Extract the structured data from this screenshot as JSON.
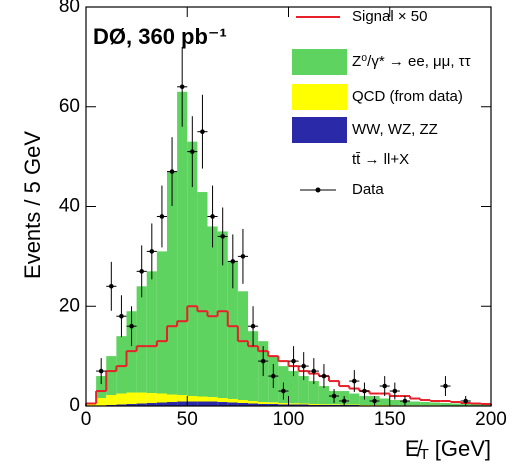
{
  "chart_data": {
    "type": "stacked_histogram",
    "title": "DØ, 360 pb⁻¹",
    "y_label": "Events / 5 GeV",
    "x_label": {
      "symbol": "E̸",
      "sub": "T",
      "unit": "[GeV]"
    },
    "xlim": [
      0,
      200
    ],
    "xticks": [
      0,
      50,
      100,
      150,
      200
    ],
    "ylim": [
      0,
      80
    ],
    "yticks": [
      0,
      20,
      40,
      60,
      80
    ],
    "bins": [
      0,
      5,
      10,
      15,
      20,
      25,
      30,
      35,
      40,
      45,
      50,
      55,
      60,
      65,
      70,
      75,
      80,
      85,
      90,
      95,
      100,
      105,
      110,
      115,
      120,
      125,
      130,
      135,
      140,
      145,
      150,
      155,
      160,
      165,
      170,
      175,
      180,
      185,
      190,
      195,
      200
    ],
    "series": [
      {
        "name": "WW, WZ, ZZ",
        "color": "#2a2aa8",
        "values": [
          0,
          0.1,
          0.2,
          0.3,
          0.4,
          0.5,
          0.6,
          0.7,
          0.8,
          0.9,
          0.9,
          0.9,
          0.9,
          0.8,
          0.7,
          0.6,
          0.5,
          0.4,
          0.4,
          0.3,
          0.3,
          0.3,
          0.2,
          0.2,
          0.2,
          0.2,
          0.2,
          0.1,
          0.1,
          0.1,
          0.1,
          0.1,
          0.1,
          0.1,
          0.1,
          0.1,
          0.1,
          0.1,
          0.1,
          0.1
        ]
      },
      {
        "name": "QCD (from data)",
        "color": "#ffff00",
        "values": [
          0.3,
          1.5,
          2,
          2.2,
          2.3,
          2.2,
          2,
          1.8,
          1.5,
          1.3,
          1.1,
          1,
          0.9,
          0.8,
          0.7,
          0.6,
          0.5,
          0.4,
          0.35,
          0.3,
          0.25,
          0.2,
          0.2,
          0.15,
          0.15,
          0.1,
          0.1,
          0.1,
          0.1,
          0.1,
          0.05,
          0.05,
          0.05,
          0.05,
          0.05,
          0,
          0,
          0,
          0,
          0
        ]
      },
      {
        "name": "Z⁰/γ* → ee, μμ, ττ",
        "color": "#5fd35f",
        "values": [
          0.2,
          4.4,
          7.8,
          11.5,
          16.3,
          21.3,
          24.4,
          28.5,
          44.7,
          60.8,
          51,
          41,
          34.2,
          33.4,
          27.6,
          21.8,
          14,
          12.2,
          9.25,
          7.4,
          6.45,
          5.5,
          4.6,
          3.65,
          2.65,
          2.7,
          2.2,
          1.8,
          1.8,
          1.3,
          1.05,
          0.85,
          0.75,
          0.65,
          0.55,
          0.5,
          0.4,
          0.3,
          0.2,
          0.2
        ]
      }
    ],
    "signal": {
      "name": "Signal × 50",
      "color": "#e8202a",
      "values": [
        0.5,
        3,
        7,
        8,
        11,
        12,
        12,
        13,
        16,
        17,
        20,
        19,
        18,
        19,
        16,
        13,
        12,
        11,
        10,
        9,
        8,
        7,
        6.5,
        6,
        5,
        4,
        3.5,
        3,
        2.5,
        2.5,
        2,
        2,
        1.5,
        1.2,
        1,
        1,
        0.8,
        0.6,
        0.5,
        0.4
      ]
    },
    "ttbar_legend": "tt̄ → ll+X",
    "data": {
      "name": "Data",
      "color": "#000000",
      "x": [
        7.5,
        12.5,
        17.5,
        22.5,
        27.5,
        32.5,
        37.5,
        42.5,
        47.5,
        52.5,
        57.5,
        62.5,
        67.5,
        72.5,
        77.5,
        82.5,
        87.5,
        92.5,
        97.5,
        102.5,
        107.5,
        112.5,
        117.5,
        122.5,
        127.5,
        132.5,
        137.5,
        142.5,
        147.5,
        152.5,
        157.5,
        177.5,
        187.5
      ],
      "values": [
        7,
        24,
        18,
        16,
        27,
        31,
        38,
        47,
        64,
        51,
        55,
        38,
        34,
        29,
        30,
        16,
        9,
        6,
        3,
        9,
        8,
        7,
        6,
        2,
        1,
        5,
        3,
        1,
        4,
        3,
        1,
        4,
        1
      ],
      "errors": [
        2.6,
        4.9,
        4.2,
        4,
        5.2,
        5.6,
        6.2,
        6.9,
        8,
        7.1,
        7.4,
        6.2,
        5.8,
        5.4,
        5.5,
        4,
        3,
        2.4,
        1.7,
        3,
        2.8,
        2.6,
        2.4,
        1.4,
        1,
        2.2,
        1.7,
        1,
        2,
        1.7,
        1,
        2,
        1
      ]
    }
  }
}
